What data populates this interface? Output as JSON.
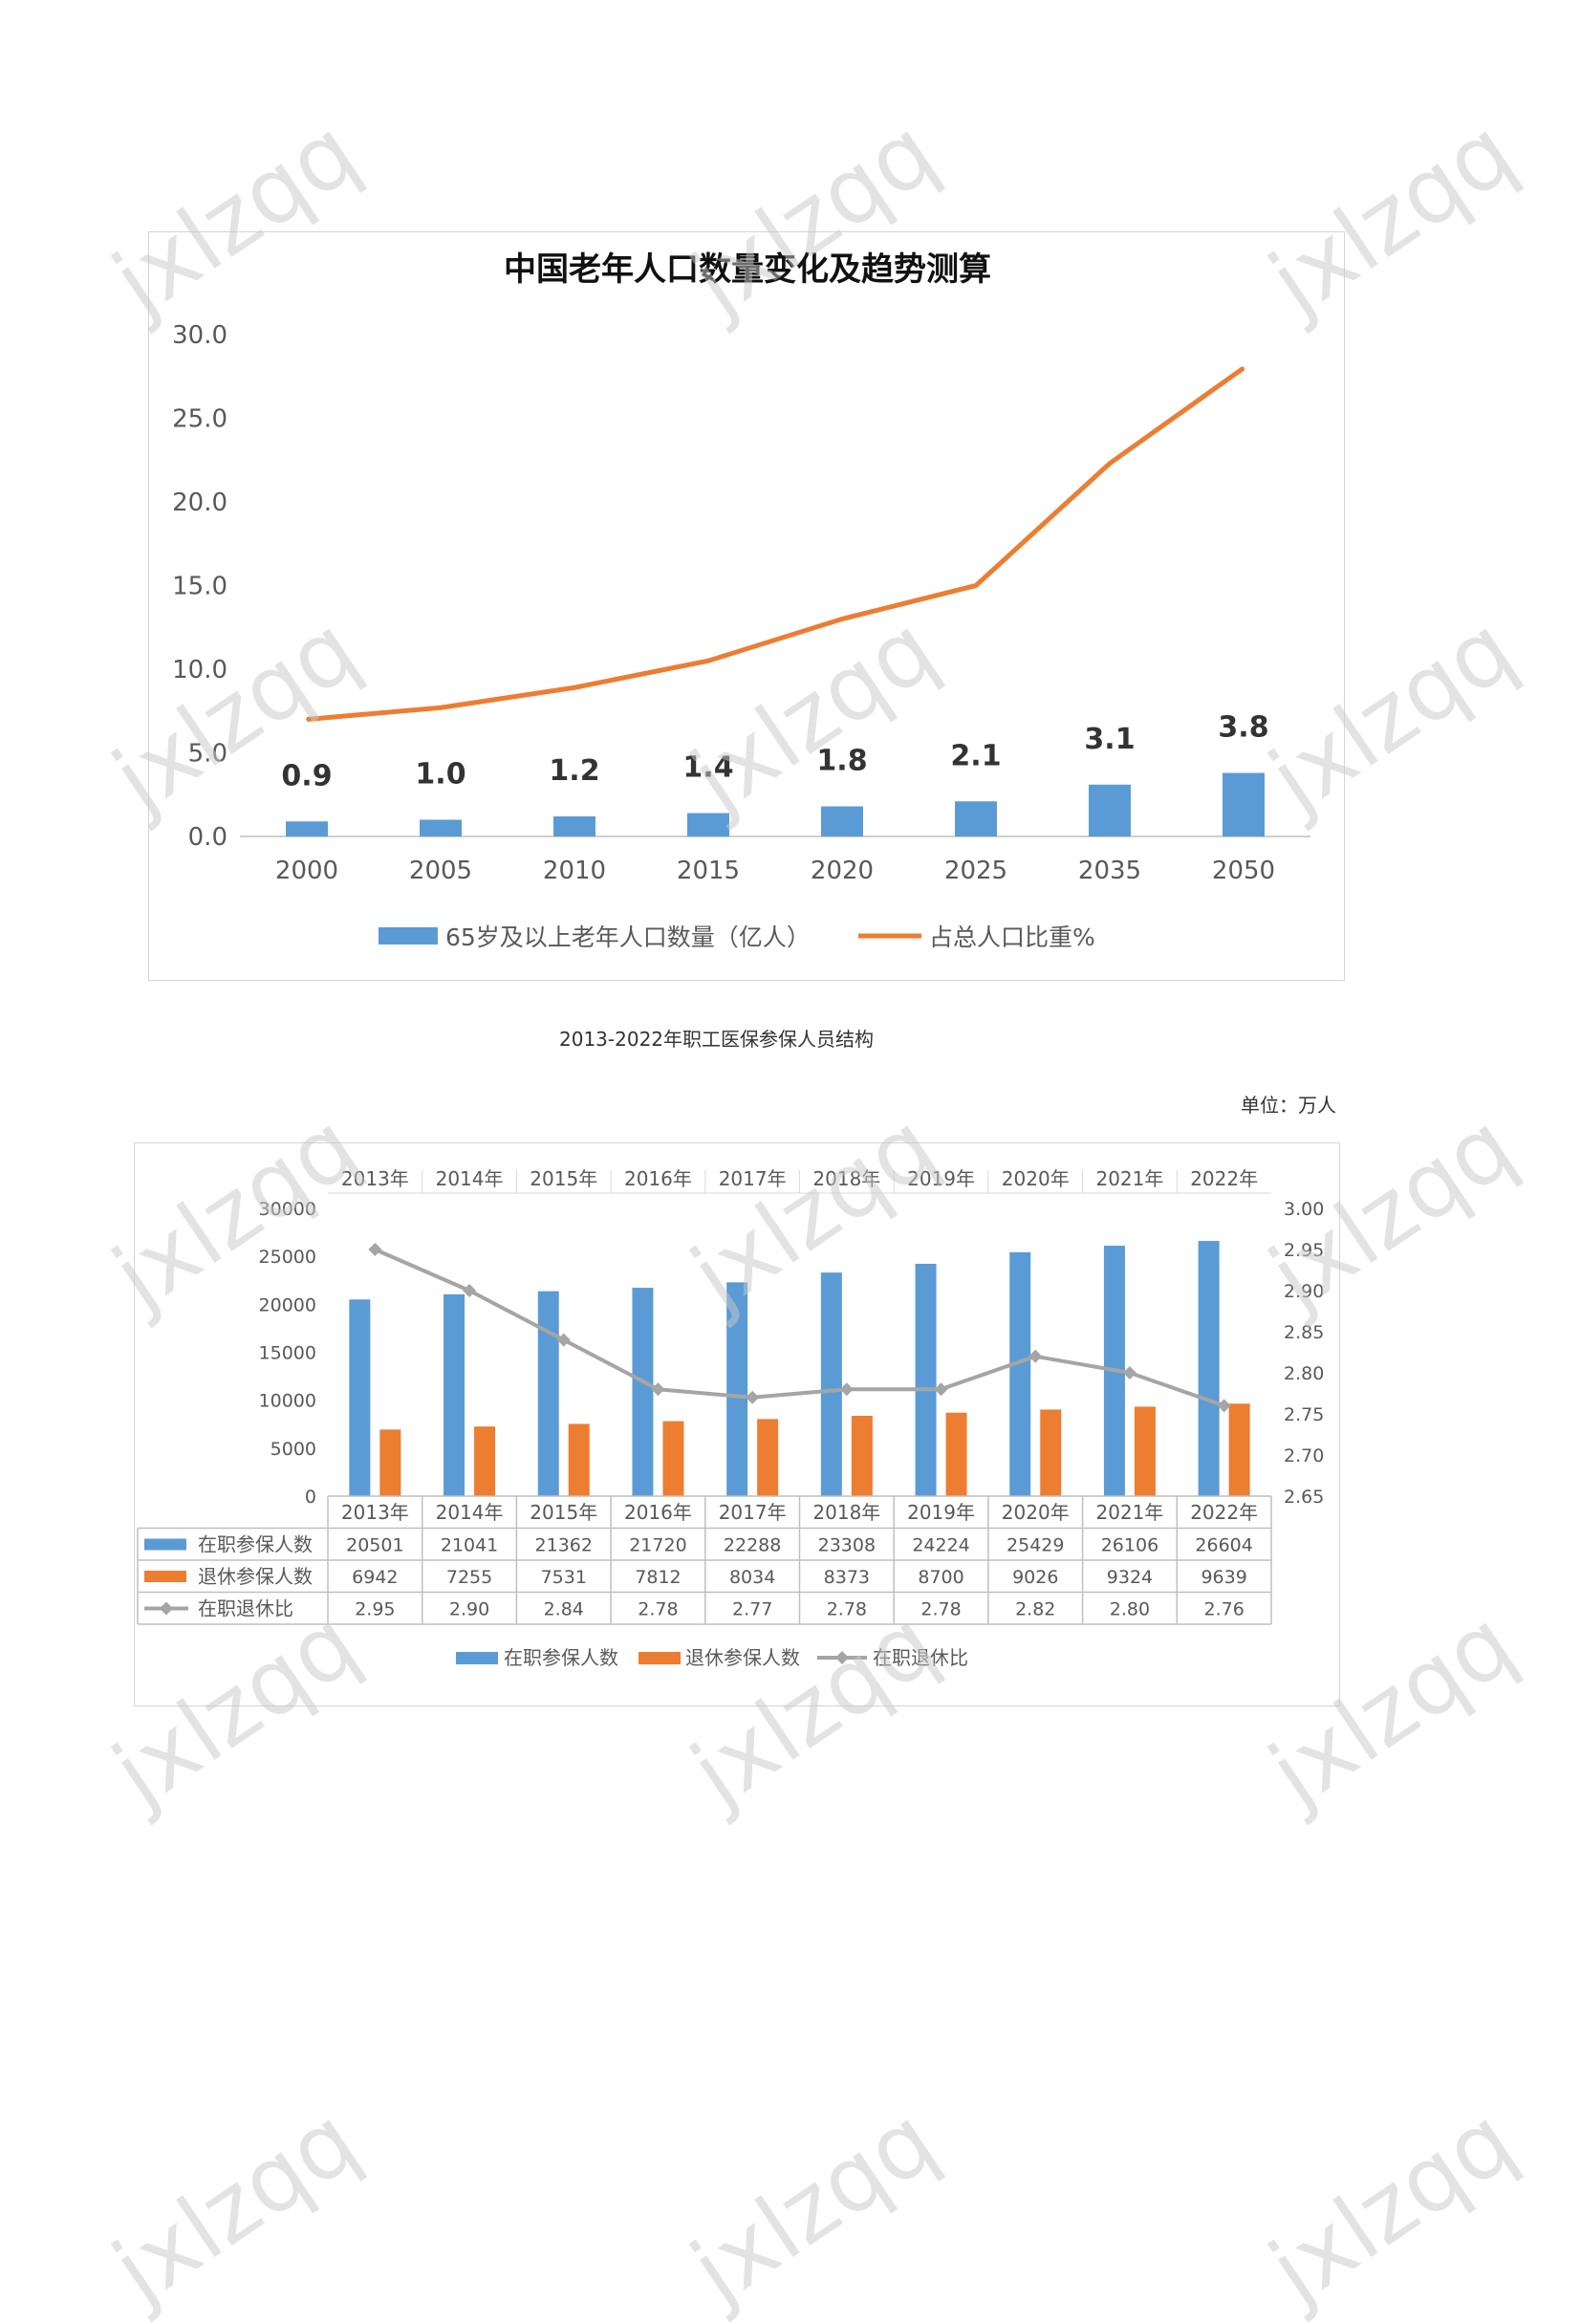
{
  "watermark": "jxlzqq",
  "chart_data": [
    {
      "type": "bar",
      "title": "中国老年人口数量变化及趋势测算",
      "categories": [
        "2000",
        "2005",
        "2010",
        "2015",
        "2020",
        "2025",
        "2035",
        "2050"
      ],
      "series": [
        {
          "name": "65岁及以上老年人口数量（亿人）",
          "kind": "bar",
          "color": "#5B9BD5",
          "values": [
            0.9,
            1.0,
            1.2,
            1.4,
            1.8,
            2.1,
            3.1,
            3.8
          ],
          "data_labels": [
            "0.9",
            "1.0",
            "1.2",
            "1.4",
            "1.8",
            "2.1",
            "3.1",
            "3.8"
          ]
        },
        {
          "name": "占总人口比重%",
          "kind": "line",
          "color": "#ED7D31",
          "values": [
            7.0,
            7.7,
            8.9,
            10.5,
            13.0,
            15.0,
            22.3,
            28.0
          ]
        }
      ],
      "ylim": [
        0,
        30
      ],
      "yticks": [
        "0.0",
        "5.0",
        "10.0",
        "15.0",
        "20.0",
        "25.0",
        "30.0"
      ],
      "grid": false,
      "legend": "bottom"
    },
    {
      "type": "bar",
      "title": "2013-2022年职工医保参保人员结构",
      "unit": "单位：万人",
      "categories": [
        "2013年",
        "2014年",
        "2015年",
        "2016年",
        "2017年",
        "2018年",
        "2019年",
        "2020年",
        "2021年",
        "2022年"
      ],
      "series": [
        {
          "name": "在职参保人数",
          "kind": "bar",
          "color": "#5B9BD5",
          "axis": "left",
          "values": [
            20501,
            21041,
            21362,
            21720,
            22288,
            23308,
            24224,
            25429,
            26106,
            26604
          ]
        },
        {
          "name": "退休参保人数",
          "kind": "bar",
          "color": "#ED7D31",
          "axis": "left",
          "values": [
            6942,
            7255,
            7531,
            7812,
            8034,
            8373,
            8700,
            9026,
            9324,
            9639
          ]
        },
        {
          "name": "在职退休比",
          "kind": "line",
          "color": "#A5A5A5",
          "axis": "right",
          "values": [
            2.95,
            2.9,
            2.84,
            2.78,
            2.77,
            2.78,
            2.78,
            2.82,
            2.8,
            2.76
          ]
        }
      ],
      "ylim": [
        0,
        30000
      ],
      "y2lim": [
        2.65,
        3.0
      ],
      "yticks": [
        "0",
        "5000",
        "10000",
        "15000",
        "20000",
        "25000",
        "30000"
      ],
      "y2ticks": [
        "2.65",
        "2.70",
        "2.75",
        "2.80",
        "2.85",
        "2.90",
        "2.95",
        "3.00"
      ],
      "xlabel": "",
      "ylabel": "",
      "y2label": "",
      "table_rows": [
        {
          "label": "在职参保人数",
          "cells": [
            "20501",
            "21041",
            "21362",
            "21720",
            "22288",
            "23308",
            "24224",
            "25429",
            "26106",
            "26604"
          ]
        },
        {
          "label": "退休参保人数",
          "cells": [
            "6942",
            "7255",
            "7531",
            "7812",
            "8034",
            "8373",
            "8700",
            "9026",
            "9324",
            "9639"
          ]
        },
        {
          "label": "在职退休比",
          "cells": [
            "2.95",
            "2.90",
            "2.84",
            "2.78",
            "2.77",
            "2.78",
            "2.78",
            "2.82",
            "2.80",
            "2.76"
          ]
        }
      ],
      "grid": false,
      "legend": "bottom"
    }
  ]
}
